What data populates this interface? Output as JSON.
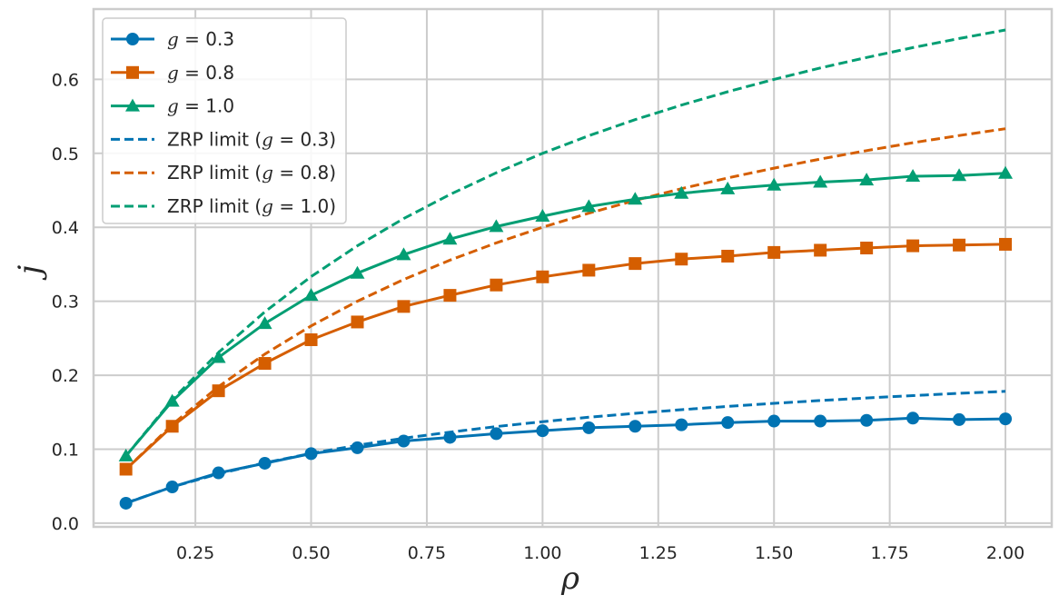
{
  "chart_data": {
    "type": "line",
    "xlabel": "ρ",
    "ylabel": "j",
    "xlim": [
      0.03,
      2.1
    ],
    "ylim": [
      -0.005,
      0.695
    ],
    "xticks": [
      0.25,
      0.5,
      0.75,
      1.0,
      1.25,
      1.5,
      1.75,
      2.0
    ],
    "xtick_labels": [
      "0.25",
      "0.50",
      "0.75",
      "1.00",
      "1.25",
      "1.50",
      "1.75",
      "2.00"
    ],
    "yticks": [
      0.0,
      0.1,
      0.2,
      0.3,
      0.4,
      0.5,
      0.6
    ],
    "ytick_labels": [
      "0.0",
      "0.1",
      "0.2",
      "0.3",
      "0.4",
      "0.5",
      "0.6"
    ],
    "grid": true,
    "legend_position": "top-left",
    "series": [
      {
        "name": "g = 0.3",
        "label_var": "g",
        "label_val": " = 0.3",
        "label_prefix": "",
        "kind": "markers",
        "marker": "circle",
        "color": "#0173b2",
        "x": [
          0.1,
          0.2,
          0.3,
          0.4,
          0.5,
          0.6,
          0.7,
          0.8,
          0.9,
          1.0,
          1.1,
          1.2,
          1.3,
          1.4,
          1.5,
          1.6,
          1.7,
          1.8,
          1.9,
          2.0
        ],
        "y": [
          0.027,
          0.049,
          0.068,
          0.081,
          0.094,
          0.102,
          0.111,
          0.116,
          0.121,
          0.125,
          0.129,
          0.131,
          0.133,
          0.136,
          0.138,
          0.138,
          0.139,
          0.142,
          0.14,
          0.141
        ]
      },
      {
        "name": "g = 0.8",
        "label_var": "g",
        "label_val": " = 0.8",
        "label_prefix": "",
        "kind": "markers",
        "marker": "square",
        "color": "#d55e00",
        "x": [
          0.1,
          0.2,
          0.3,
          0.4,
          0.5,
          0.6,
          0.7,
          0.8,
          0.9,
          1.0,
          1.1,
          1.2,
          1.3,
          1.4,
          1.5,
          1.6,
          1.7,
          1.8,
          1.9,
          2.0
        ],
        "y": [
          0.073,
          0.131,
          0.179,
          0.216,
          0.248,
          0.272,
          0.293,
          0.308,
          0.322,
          0.333,
          0.342,
          0.351,
          0.357,
          0.361,
          0.366,
          0.369,
          0.372,
          0.375,
          0.376,
          0.377
        ]
      },
      {
        "name": "g = 1.0",
        "label_var": "g",
        "label_val": " = 1.0",
        "label_prefix": "",
        "kind": "markers",
        "marker": "triangle",
        "color": "#029e73",
        "x": [
          0.1,
          0.2,
          0.3,
          0.4,
          0.5,
          0.6,
          0.7,
          0.8,
          0.9,
          1.0,
          1.1,
          1.2,
          1.3,
          1.4,
          1.5,
          1.6,
          1.7,
          1.8,
          1.9,
          2.0
        ],
        "y": [
          0.091,
          0.165,
          0.224,
          0.27,
          0.308,
          0.338,
          0.363,
          0.384,
          0.401,
          0.415,
          0.428,
          0.438,
          0.446,
          0.452,
          0.457,
          0.461,
          0.464,
          0.469,
          0.47,
          0.473
        ]
      },
      {
        "name": "ZRP limit (g = 0.3)",
        "label_prefix": "ZRP limit (",
        "label_var": "g",
        "label_val": " = 0.3)",
        "kind": "dashed",
        "color": "#0173b2",
        "x": [
          0.1,
          0.2,
          0.3,
          0.4,
          0.5,
          0.6,
          0.7,
          0.8,
          0.9,
          1.0,
          1.1,
          1.2,
          1.3,
          1.4,
          1.5,
          1.6,
          1.7,
          1.8,
          1.9,
          2.0
        ],
        "y": [
          0.0273,
          0.049,
          0.0667,
          0.0816,
          0.0943,
          0.1053,
          0.1148,
          0.1231,
          0.1306,
          0.1372,
          0.1432,
          0.1485,
          0.1534,
          0.1579,
          0.162,
          0.1658,
          0.1693,
          0.1725,
          0.1755,
          0.1782
        ]
      },
      {
        "name": "ZRP limit (g = 0.8)",
        "label_prefix": "ZRP limit (",
        "label_var": "g",
        "label_val": " = 0.8)",
        "kind": "dashed",
        "color": "#d55e00",
        "x": [
          0.1,
          0.2,
          0.3,
          0.4,
          0.5,
          0.6,
          0.7,
          0.8,
          0.9,
          1.0,
          1.1,
          1.2,
          1.3,
          1.4,
          1.5,
          1.6,
          1.7,
          1.8,
          1.9,
          2.0
        ],
        "y": [
          0.0727,
          0.1333,
          0.1846,
          0.2286,
          0.2667,
          0.3,
          0.3294,
          0.3556,
          0.3789,
          0.4,
          0.419,
          0.4364,
          0.4522,
          0.4667,
          0.48,
          0.4923,
          0.5037,
          0.5143,
          0.5241,
          0.5333
        ]
      },
      {
        "name": "ZRP limit (g = 1.0)",
        "label_prefix": "ZRP limit (",
        "label_var": "g",
        "label_val": " = 1.0)",
        "kind": "dashed",
        "color": "#029e73",
        "x": [
          0.1,
          0.2,
          0.3,
          0.4,
          0.5,
          0.6,
          0.7,
          0.8,
          0.9,
          1.0,
          1.1,
          1.2,
          1.3,
          1.4,
          1.5,
          1.6,
          1.7,
          1.8,
          1.9,
          2.0
        ],
        "y": [
          0.0909,
          0.1667,
          0.2308,
          0.2857,
          0.3333,
          0.375,
          0.4118,
          0.4444,
          0.4737,
          0.5,
          0.5238,
          0.5455,
          0.5652,
          0.5833,
          0.6,
          0.6154,
          0.6296,
          0.6429,
          0.6552,
          0.6667
        ]
      }
    ]
  }
}
